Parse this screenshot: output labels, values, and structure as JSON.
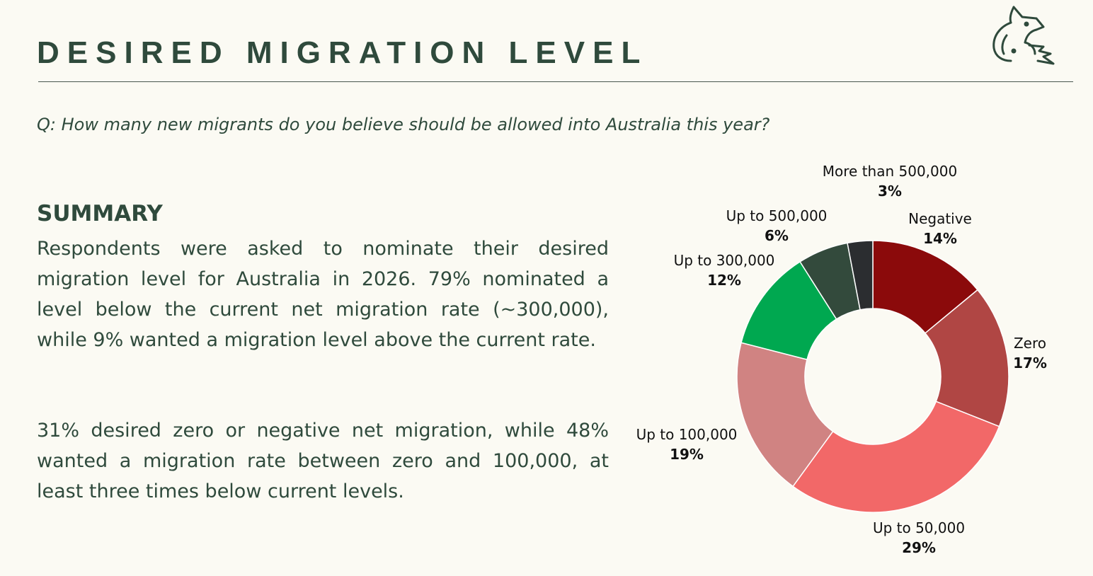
{
  "header": {
    "title": "DESIRED MIGRATION LEVEL",
    "question": "Q: How many new migrants do you believe should be allowed into Australia this year?"
  },
  "logo": {
    "icon": "fox-icon",
    "color": "#2f4a3c"
  },
  "summary": {
    "heading": "SUMMARY",
    "paragraph1": "Respondents were asked to nominate their desired migration level for Australia in 2026. 79% nominated a level below the current net migration rate (~300,000), while 9% wanted a migration level above the current rate.",
    "paragraph2": "31% desired zero or negative net migration, while 48% wanted a migration rate between zero and 100,000, at least three times below current levels."
  },
  "chart_data": {
    "type": "pie",
    "style": "donut",
    "title": "",
    "labels": [
      "Negative",
      "Zero",
      "Up to 50,000",
      "Up to 100,000",
      "Up to 300,000",
      "Up to 500,000",
      "More than 500,000"
    ],
    "values": [
      14,
      17,
      29,
      19,
      12,
      6,
      3
    ],
    "value_labels": [
      "14%",
      "17%",
      "29%",
      "19%",
      "12%",
      "6%",
      "3%"
    ],
    "colors": [
      "#8b0a0b",
      "#b04644",
      "#f26868",
      "#d08382",
      "#00a850",
      "#334a3c",
      "#2b2d30"
    ],
    "start": "top, clockwise"
  }
}
